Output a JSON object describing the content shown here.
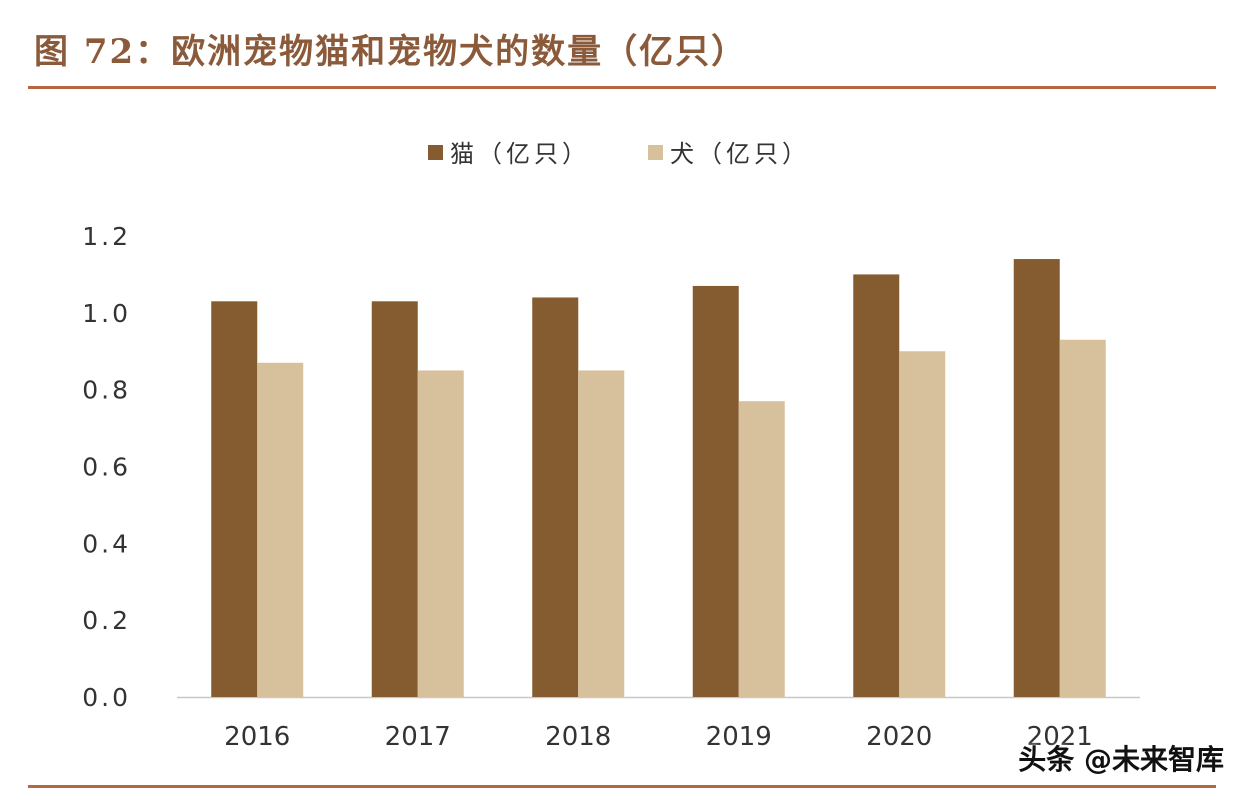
{
  "title": "图 72：欧洲宠物猫和宠物犬的数量（亿只）",
  "watermark": "头条 @未来智库",
  "colors": {
    "cat": "#855b30",
    "dog": "#d7c19d",
    "axis": "#c8c8c8",
    "text": "#333333",
    "rule": "#b7673f"
  },
  "chart_data": {
    "type": "bar",
    "title": "图 72：欧洲宠物猫和宠物犬的数量（亿只）",
    "xlabel": "",
    "ylabel": "",
    "categories": [
      "2016",
      "2017",
      "2018",
      "2019",
      "2020",
      "2021"
    ],
    "series": [
      {
        "name": "猫（亿只）",
        "values": [
          1.03,
          1.03,
          1.04,
          1.07,
          1.1,
          1.14
        ]
      },
      {
        "name": "犬（亿只）",
        "values": [
          0.87,
          0.85,
          0.85,
          0.77,
          0.9,
          0.93
        ]
      }
    ],
    "ylim": [
      0,
      1.2
    ],
    "yticks": [
      "0.0",
      "0.2",
      "0.4",
      "0.6",
      "0.8",
      "1.0",
      "1.2"
    ],
    "grid": false,
    "legend": "top-center"
  }
}
